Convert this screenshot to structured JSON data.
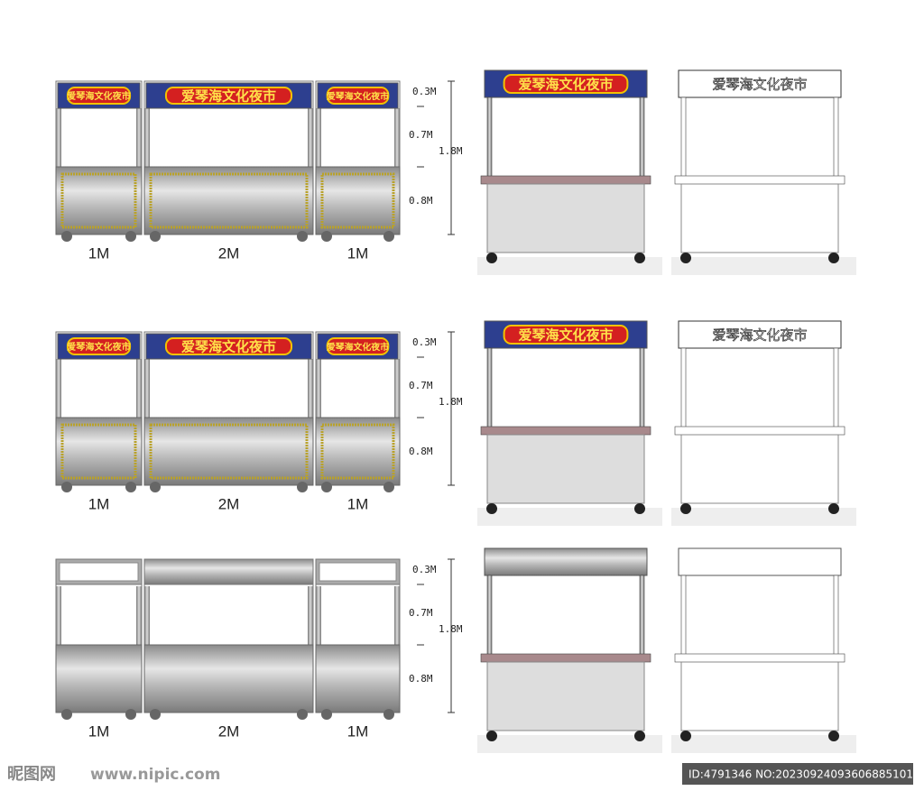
{
  "sign_text": "爱琴海文化夜市",
  "dimensions": {
    "top": "0.3M",
    "middle": "0.7M",
    "bottom": "0.8M",
    "total": "1.8M"
  },
  "widths": [
    "1M",
    "2M",
    "1M"
  ],
  "watermark": {
    "logo": "昵图网",
    "url": "www.nipic.com"
  },
  "id_text": "ID:4791346 NO:20230924093606885101"
}
